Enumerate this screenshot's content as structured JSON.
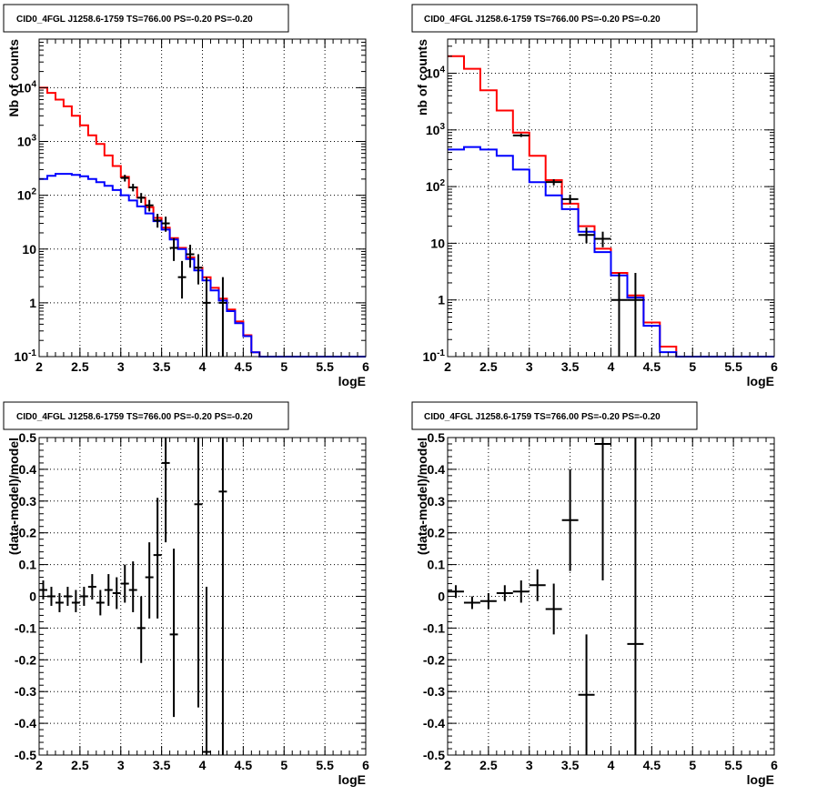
{
  "colors": {
    "data": "#000000",
    "total_model": "#ff0000",
    "component_model": "#0000ff",
    "grid": "#000000"
  },
  "chart_data": [
    {
      "type": "line",
      "title": "CID0_4FGL J1258.6-1759 TS=766.00 PS=-0.20 PS=-0.20",
      "xlabel": "logE",
      "ylabel": "Nb of counts",
      "xlim": [
        2,
        6
      ],
      "ylim": [
        0.1,
        80000
      ],
      "yscale": "log",
      "x_ticks": [
        "2",
        "2.5",
        "3",
        "3.5",
        "4",
        "4.5",
        "5",
        "5.5",
        "6"
      ],
      "y_ticks": [
        "10-1",
        "1",
        "10",
        "102",
        "103",
        "104"
      ],
      "grid": true,
      "bin_edges": [
        2.0,
        2.1,
        2.2,
        2.3,
        2.4,
        2.5,
        2.6,
        2.7,
        2.8,
        2.9,
        3.0,
        3.1,
        3.2,
        3.3,
        3.4,
        3.5,
        3.6,
        3.7,
        3.8,
        3.9,
        4.0,
        4.1,
        4.2,
        4.3,
        4.4,
        4.5,
        4.6,
        4.7,
        4.8,
        4.9,
        5.0,
        5.1,
        5.2,
        5.3,
        5.4,
        5.5,
        5.6,
        5.7,
        5.8,
        5.9,
        6.0
      ],
      "series": [
        {
          "color": "#ff0000",
          "style": "step",
          "values": [
            10000,
            8000,
            6000,
            4500,
            3000,
            2000,
            1300,
            900,
            550,
            350,
            220,
            140,
            90,
            60,
            38,
            25,
            16,
            10.5,
            7,
            4.5,
            3,
            1.9,
            1.2,
            0.75,
            0.45,
            0.25,
            0.12,
            0.1,
            0.1,
            0.1,
            0.1,
            0.1,
            0.1,
            0.1,
            0.1,
            0.1,
            0.1,
            0.1,
            0.1,
            0.1
          ]
        },
        {
          "color": "#0000ff",
          "style": "step",
          "values": [
            200,
            230,
            250,
            250,
            240,
            225,
            200,
            175,
            150,
            125,
            100,
            80,
            62,
            46,
            33,
            23,
            15,
            10,
            6.5,
            4,
            2.6,
            1.7,
            1.1,
            0.7,
            0.42,
            0.24,
            0.12,
            0.1,
            0.1,
            0.1,
            0.1,
            0.1,
            0.1,
            0.1,
            0.1,
            0.1,
            0.1,
            0.1,
            0.1,
            0.1
          ]
        },
        {
          "color": "#000000",
          "style": "errorbar",
          "points": [
            {
              "x": 3.05,
              "y": 210,
              "lo": 180,
              "hi": 240
            },
            {
              "x": 3.15,
              "y": 140,
              "lo": 118,
              "hi": 163
            },
            {
              "x": 3.25,
              "y": 90,
              "lo": 72,
              "hi": 110
            },
            {
              "x": 3.35,
              "y": 65,
              "lo": 50,
              "hi": 82
            },
            {
              "x": 3.45,
              "y": 34,
              "lo": 25,
              "hi": 45
            },
            {
              "x": 3.55,
              "y": 30,
              "lo": 21,
              "hi": 40
            },
            {
              "x": 3.65,
              "y": 10.5,
              "lo": 6,
              "hi": 16
            },
            {
              "x": 3.75,
              "y": 3,
              "lo": 1.2,
              "hi": 6
            },
            {
              "x": 3.85,
              "y": 8,
              "lo": 4.5,
              "hi": 12
            },
            {
              "x": 3.95,
              "y": 4.5,
              "lo": 2.2,
              "hi": 8
            },
            {
              "x": 4.05,
              "y": 1,
              "lo": 0.1,
              "hi": 3
            },
            {
              "x": 4.25,
              "y": 1,
              "lo": 0.1,
              "hi": 3
            }
          ]
        }
      ]
    },
    {
      "type": "line",
      "title": "CID0_4FGL J1258.6-1759 TS=766.00 PS=-0.20 PS=-0.20",
      "xlabel": "logE",
      "ylabel": "nb of counts",
      "xlim": [
        2,
        6
      ],
      "ylim": [
        0.1,
        40000
      ],
      "yscale": "log",
      "x_ticks": [
        "2",
        "2.5",
        "3",
        "3.5",
        "4",
        "4.5",
        "5",
        "5.5",
        "6"
      ],
      "y_ticks": [
        "10-1",
        "1",
        "10",
        "102",
        "103",
        "104"
      ],
      "grid": true,
      "bin_edges": [
        2.0,
        2.2,
        2.4,
        2.6,
        2.8,
        3.0,
        3.2,
        3.4,
        3.6,
        3.8,
        4.0,
        4.2,
        4.4,
        4.6,
        4.8,
        5.0,
        5.2,
        5.4,
        5.6,
        5.8,
        6.0
      ],
      "series": [
        {
          "color": "#ff0000",
          "style": "step",
          "values": [
            20000,
            12000,
            5000,
            2200,
            900,
            350,
            130,
            50,
            20,
            8,
            3,
            1.2,
            0.4,
            0.15,
            0.1,
            0.1,
            0.1,
            0.1,
            0.1,
            0.1
          ]
        },
        {
          "color": "#0000ff",
          "style": "step",
          "values": [
            450,
            500,
            450,
            350,
            200,
            120,
            70,
            40,
            16,
            7,
            2.7,
            1.1,
            0.35,
            0.12,
            0.1,
            0.1,
            0.1,
            0.1,
            0.1,
            0.1
          ]
        },
        {
          "color": "#000000",
          "style": "errorbar",
          "points": [
            {
              "x": 2.9,
              "y": 800,
              "lo": 750,
              "hi": 860
            },
            {
              "x": 3.3,
              "y": 120,
              "lo": 105,
              "hi": 135
            },
            {
              "x": 3.5,
              "y": 60,
              "lo": 50,
              "hi": 72
            },
            {
              "x": 3.7,
              "y": 14,
              "lo": 10,
              "hi": 19
            },
            {
              "x": 3.9,
              "y": 12,
              "lo": 8.5,
              "hi": 16
            },
            {
              "x": 4.1,
              "y": 1,
              "lo": 0.1,
              "hi": 3
            },
            {
              "x": 4.3,
              "y": 1,
              "lo": 0.1,
              "hi": 3
            }
          ]
        }
      ]
    },
    {
      "type": "scatter",
      "title": "CID0_4FGL J1258.6-1759 TS=766.00 PS=-0.20 PS=-0.20",
      "xlabel": "logE",
      "ylabel": "(data-model)/model",
      "xlim": [
        2,
        6
      ],
      "ylim": [
        -0.5,
        0.5
      ],
      "x_ticks": [
        "2",
        "2.5",
        "3",
        "3.5",
        "4",
        "4.5",
        "5",
        "5.5",
        "6"
      ],
      "y_ticks": [
        "-0.5",
        "-0.4",
        "-0.3",
        "-0.2",
        "-0.1",
        "0",
        "0.1",
        "0.2",
        "0.3",
        "0.4",
        "0.5"
      ],
      "grid": true,
      "bin_width": 0.1,
      "points": [
        {
          "x": 2.05,
          "y": 0.02,
          "lo": -0.01,
          "hi": 0.05
        },
        {
          "x": 2.15,
          "y": 0.0,
          "lo": -0.03,
          "hi": 0.03
        },
        {
          "x": 2.25,
          "y": -0.02,
          "lo": -0.05,
          "hi": 0.01
        },
        {
          "x": 2.35,
          "y": 0.0,
          "lo": -0.03,
          "hi": 0.03
        },
        {
          "x": 2.45,
          "y": -0.02,
          "lo": -0.05,
          "hi": 0.02
        },
        {
          "x": 2.55,
          "y": 0.0,
          "lo": -0.03,
          "hi": 0.03
        },
        {
          "x": 2.65,
          "y": 0.03,
          "lo": -0.01,
          "hi": 0.07
        },
        {
          "x": 2.75,
          "y": -0.02,
          "lo": -0.06,
          "hi": 0.02
        },
        {
          "x": 2.85,
          "y": 0.02,
          "lo": -0.03,
          "hi": 0.07
        },
        {
          "x": 2.95,
          "y": 0.01,
          "lo": -0.04,
          "hi": 0.06
        },
        {
          "x": 3.05,
          "y": 0.04,
          "lo": -0.02,
          "hi": 0.1
        },
        {
          "x": 3.15,
          "y": 0.02,
          "lo": -0.05,
          "hi": 0.11
        },
        {
          "x": 3.25,
          "y": -0.1,
          "lo": -0.21,
          "hi": 0.0
        },
        {
          "x": 3.35,
          "y": 0.06,
          "lo": -0.07,
          "hi": 0.17
        },
        {
          "x": 3.45,
          "y": 0.13,
          "lo": -0.07,
          "hi": 0.31
        },
        {
          "x": 3.55,
          "y": 0.42,
          "lo": 0.17,
          "hi": 0.52
        },
        {
          "x": 3.65,
          "y": -0.12,
          "lo": -0.38,
          "hi": 0.15
        },
        {
          "x": 3.95,
          "y": 0.29,
          "lo": -0.35,
          "hi": 0.52
        },
        {
          "x": 4.05,
          "y": -0.49,
          "lo": -0.52,
          "hi": 0.03
        },
        {
          "x": 4.25,
          "y": 0.33,
          "lo": -0.52,
          "hi": 0.52
        }
      ]
    },
    {
      "type": "scatter",
      "title": "CID0_4FGL J1258.6-1759 TS=766.00 PS=-0.20 PS=-0.20",
      "xlabel": "logE",
      "ylabel": "(data-model)/model",
      "xlim": [
        2,
        6
      ],
      "ylim": [
        -0.5,
        0.5
      ],
      "x_ticks": [
        "2",
        "2.5",
        "3",
        "3.5",
        "4",
        "4.5",
        "5",
        "5.5",
        "6"
      ],
      "y_ticks": [
        "-0.5",
        "-0.4",
        "-0.3",
        "-0.2",
        "-0.1",
        "0",
        "0.1",
        "0.2",
        "0.3",
        "0.4",
        "0.5"
      ],
      "grid": true,
      "bin_width": 0.2,
      "points": [
        {
          "x": 2.1,
          "y": 0.015,
          "lo": -0.005,
          "hi": 0.035
        },
        {
          "x": 2.3,
          "y": -0.02,
          "lo": -0.04,
          "hi": 0.0
        },
        {
          "x": 2.5,
          "y": -0.015,
          "lo": -0.04,
          "hi": 0.01
        },
        {
          "x": 2.7,
          "y": 0.01,
          "lo": -0.015,
          "hi": 0.035
        },
        {
          "x": 2.9,
          "y": 0.015,
          "lo": -0.02,
          "hi": 0.05
        },
        {
          "x": 3.1,
          "y": 0.035,
          "lo": -0.015,
          "hi": 0.085
        },
        {
          "x": 3.3,
          "y": -0.04,
          "lo": -0.12,
          "hi": 0.04
        },
        {
          "x": 3.5,
          "y": 0.24,
          "lo": 0.08,
          "hi": 0.4
        },
        {
          "x": 3.7,
          "y": -0.31,
          "lo": -0.52,
          "hi": -0.12
        },
        {
          "x": 3.9,
          "y": 0.48,
          "lo": 0.05,
          "hi": 0.52
        },
        {
          "x": 4.3,
          "y": -0.15,
          "lo": -0.52,
          "hi": 0.52
        }
      ]
    }
  ]
}
